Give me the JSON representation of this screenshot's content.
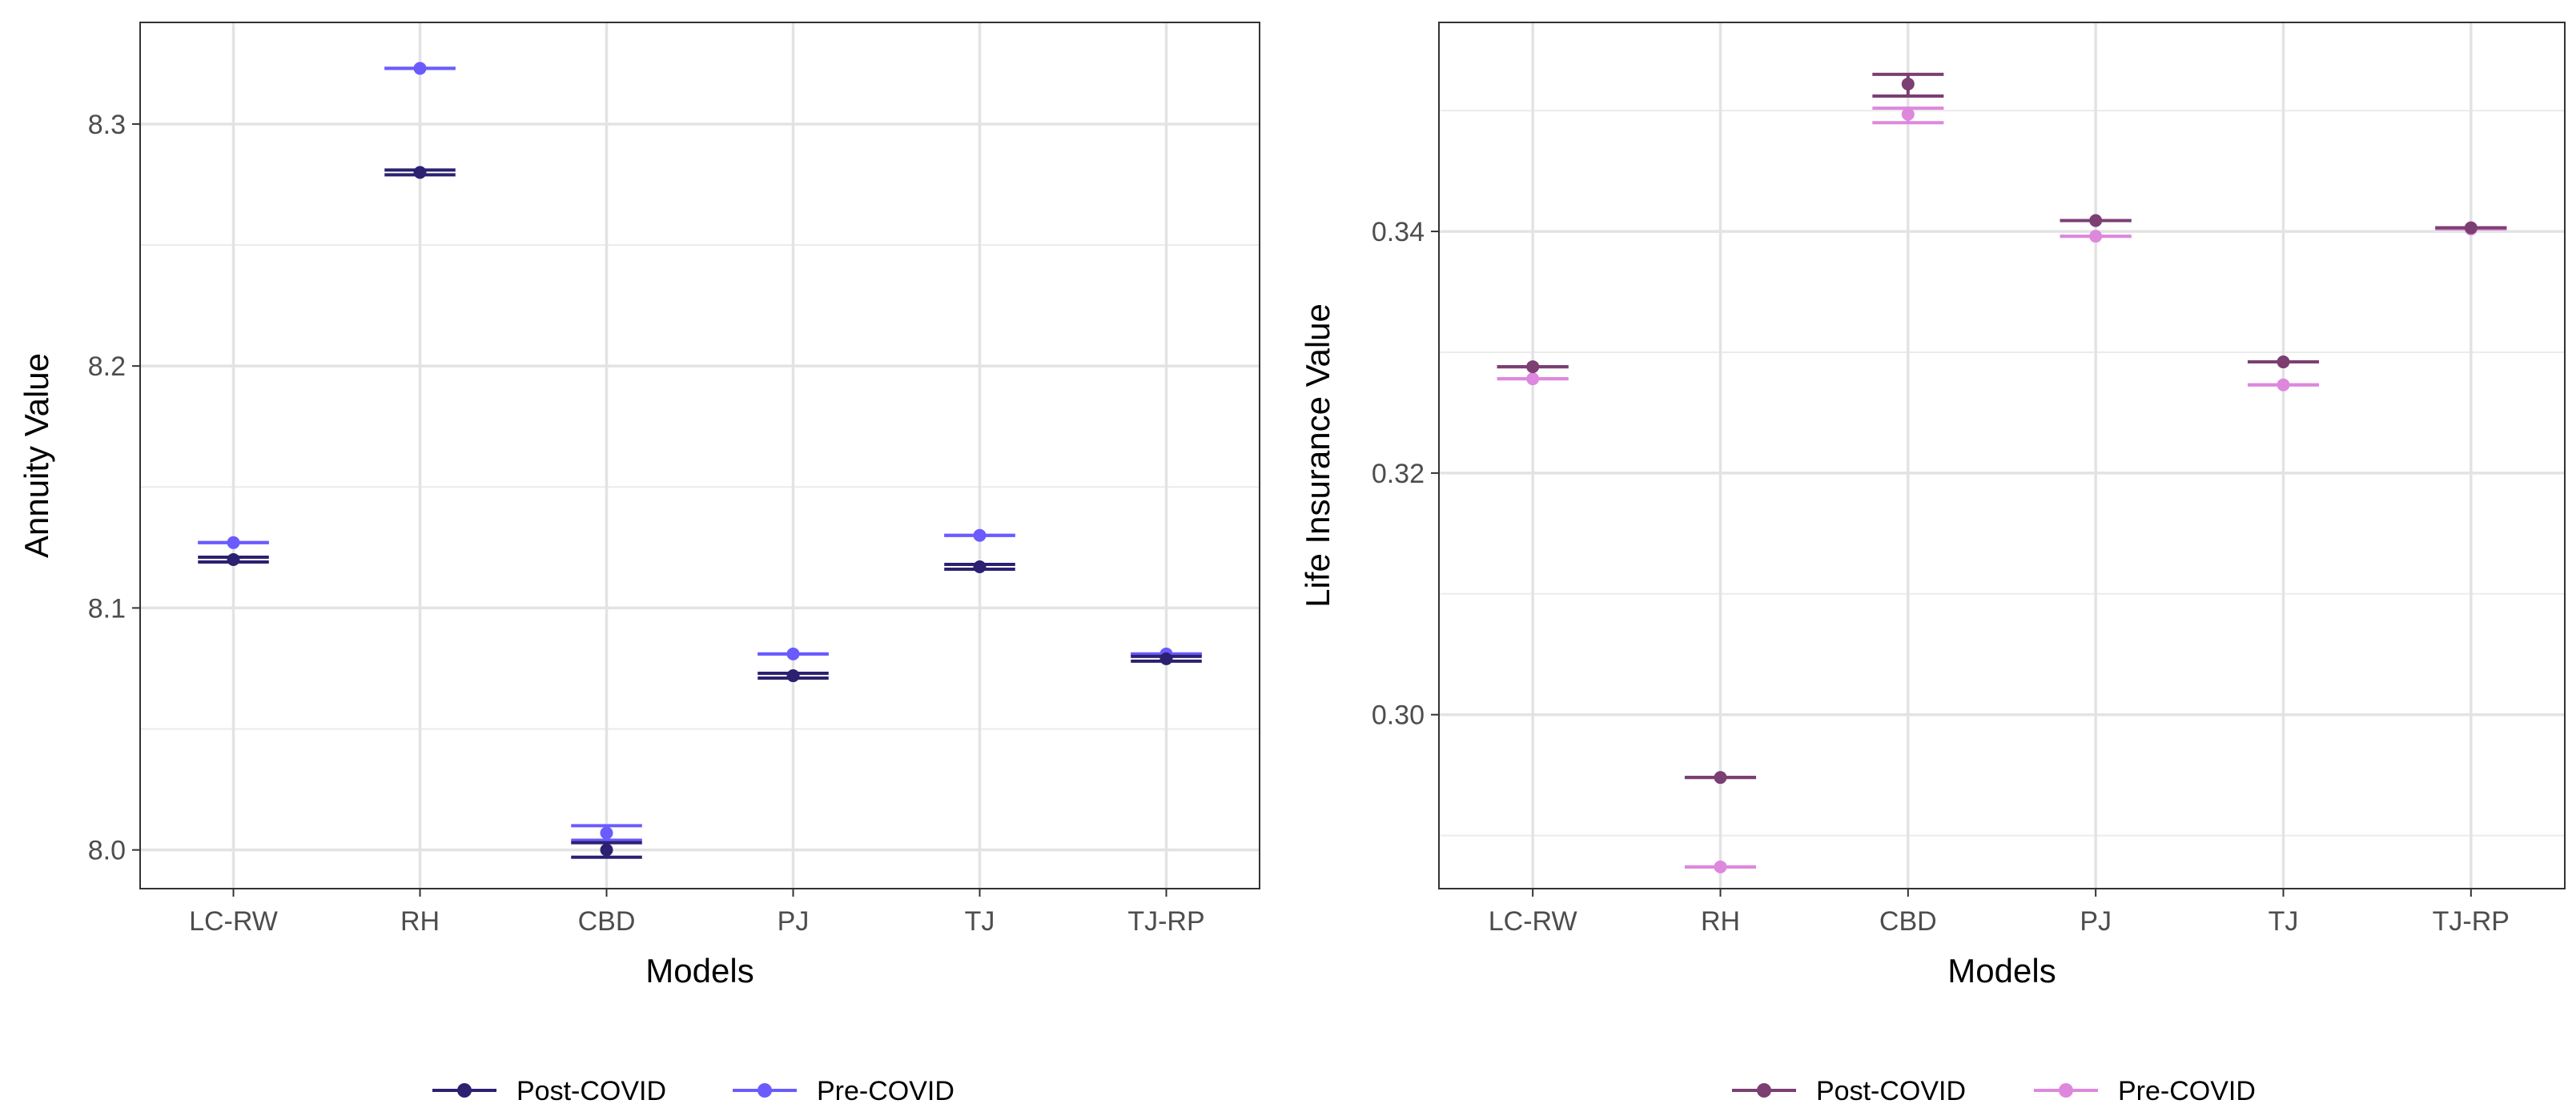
{
  "chart_data": [
    {
      "type": "errorbar",
      "xlabel": "Models",
      "ylabel": "Annuity Value",
      "categories": [
        "LC-RW",
        "RH",
        "CBD",
        "PJ",
        "TJ",
        "TJ-RP"
      ],
      "ylim": [
        7.984,
        8.342
      ],
      "yticks": [
        8.0,
        8.1,
        8.2,
        8.3
      ],
      "ytick_labels": [
        "8.0",
        "8.1",
        "8.2",
        "8.3"
      ],
      "grid": true,
      "legend_position": "bottom",
      "series": [
        {
          "name": "Post-COVID",
          "color": "#2b2170",
          "values": [
            8.12,
            8.28,
            8.0,
            8.072,
            8.117,
            8.079
          ],
          "lower": [
            8.119,
            8.279,
            7.997,
            8.071,
            8.116,
            8.078
          ],
          "upper": [
            8.121,
            8.281,
            8.003,
            8.073,
            8.118,
            8.08
          ]
        },
        {
          "name": "Pre-COVID",
          "color": "#6a5bff",
          "values": [
            8.127,
            8.323,
            8.007,
            8.081,
            8.13,
            8.081
          ],
          "lower": [
            8.127,
            8.323,
            8.004,
            8.081,
            8.13,
            8.081
          ],
          "upper": [
            8.127,
            8.323,
            8.01,
            8.081,
            8.13,
            8.081
          ]
        }
      ]
    },
    {
      "type": "errorbar",
      "xlabel": "Models",
      "ylabel": "Life Insurance Value",
      "categories": [
        "LC-RW",
        "RH",
        "CBD",
        "PJ",
        "TJ",
        "TJ-RP"
      ],
      "ylim": [
        0.2856,
        0.3573
      ],
      "yticks": [
        0.3,
        0.32,
        0.34
      ],
      "ytick_labels": [
        "0.30",
        "0.32",
        "0.34"
      ],
      "grid": true,
      "legend_position": "bottom",
      "series": [
        {
          "name": "Post-COVID",
          "color": "#7b3f72",
          "values": [
            0.3288,
            0.2948,
            0.3522,
            0.3409,
            0.3292,
            0.3403
          ],
          "lower": [
            0.3288,
            0.2948,
            0.3512,
            0.3409,
            0.3292,
            0.3403
          ],
          "upper": [
            0.3288,
            0.2948,
            0.353,
            0.3409,
            0.3292,
            0.3403
          ]
        },
        {
          "name": "Pre-COVID",
          "color": "#dd88dd",
          "values": [
            0.3278,
            0.2874,
            0.3497,
            0.3396,
            0.3273,
            0.3402
          ],
          "lower": [
            0.3278,
            0.2874,
            0.349,
            0.3396,
            0.3273,
            0.3402
          ],
          "upper": [
            0.3278,
            0.2874,
            0.3502,
            0.3396,
            0.3273,
            0.3402
          ]
        }
      ]
    }
  ]
}
